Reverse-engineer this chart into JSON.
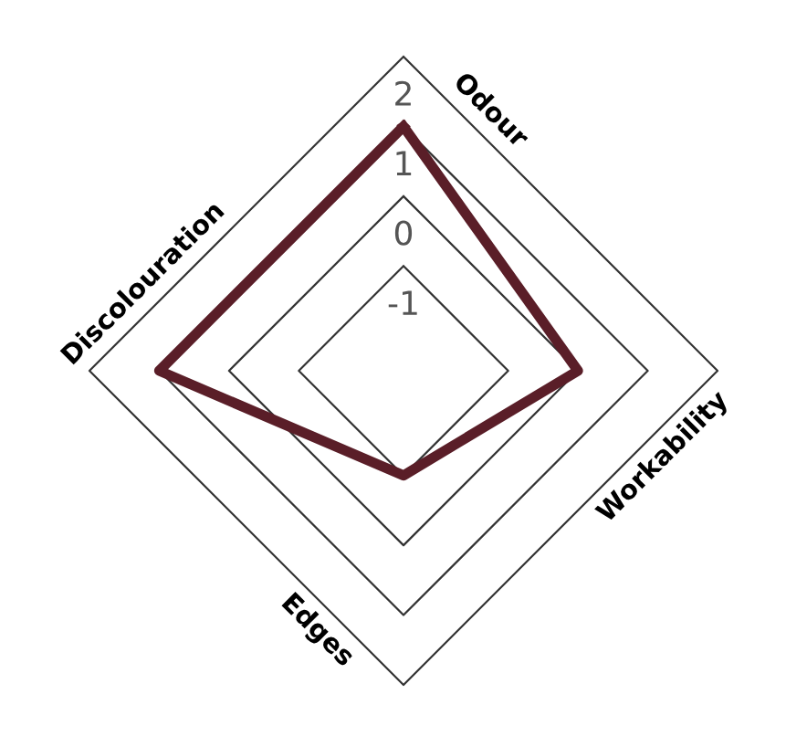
{
  "chart_data": {
    "type": "radar",
    "categories": [
      "Odour",
      "Workability",
      "Edges",
      "Discolouration"
    ],
    "series": [
      {
        "color": "#5a1e28",
        "values": [
          1,
          0,
          -1,
          1
        ]
      }
    ],
    "ylim": [
      -2.5,
      2
    ],
    "yticks": [
      -1,
      0,
      1,
      2
    ],
    "grid": true,
    "marker": "none",
    "line_style": "solid"
  }
}
